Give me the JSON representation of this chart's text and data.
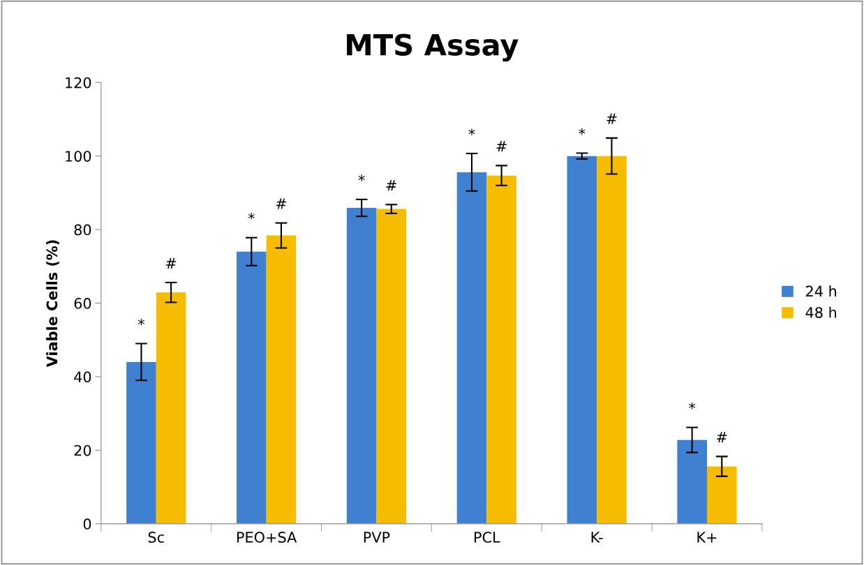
{
  "chart_data": {
    "type": "bar",
    "title": "MTS Assay",
    "ylabel": "Viable Cells (%)",
    "categories": [
      "Sc",
      "PEO+SA",
      "PVP",
      "PCL",
      "K-",
      "K+"
    ],
    "series": [
      {
        "name": "24 h",
        "color": "#3f80d0",
        "values": [
          44,
          74,
          85.9,
          95.6,
          100,
          22.8
        ],
        "errors": [
          5,
          3.8,
          2.3,
          5.1,
          0.8,
          3.4
        ],
        "value_labels": [
          "*",
          "*",
          "*",
          "*",
          "*",
          "*"
        ]
      },
      {
        "name": "48 h",
        "color": "#f6bd00",
        "values": [
          62.9,
          78.4,
          85.6,
          94.7,
          100,
          15.6
        ],
        "errors": [
          2.7,
          3.4,
          1.2,
          2.7,
          4.9,
          2.7
        ],
        "value_labels": [
          "#",
          "#",
          "#",
          "#",
          "#",
          "#"
        ]
      }
    ],
    "ylim": [
      0,
      120
    ],
    "yticks": [
      0,
      20,
      40,
      60,
      80,
      100,
      120
    ],
    "legend": "right",
    "grid": false
  }
}
